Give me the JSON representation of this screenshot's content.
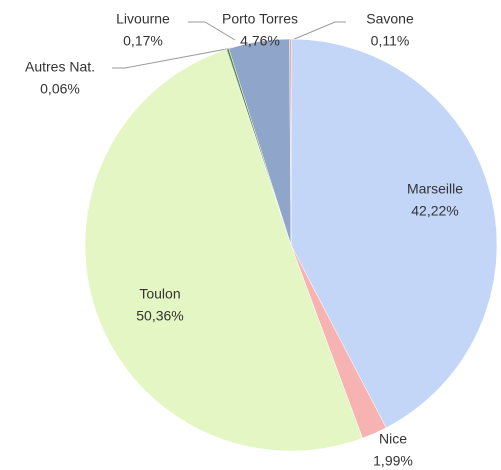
{
  "chart_data": {
    "type": "pie",
    "categories": [
      "Marseille",
      "Nice",
      "Toulon",
      "Autres Nat.",
      "Livourne",
      "Porto Torres",
      "Savone"
    ],
    "values": [
      42.22,
      1.99,
      50.36,
      0.06,
      0.17,
      4.76,
      0.11
    ],
    "value_labels": [
      "42,22%",
      "1,99%",
      "50,36%",
      "0,06%",
      "0,17%",
      "4,76%",
      "0,11%"
    ],
    "colors": [
      "#c3d6f7",
      "#f7b2b2",
      "#e4f6c4",
      "#3f9a9a",
      "#5a8a3a",
      "#8fa5c9",
      "#ee8a86"
    ]
  }
}
